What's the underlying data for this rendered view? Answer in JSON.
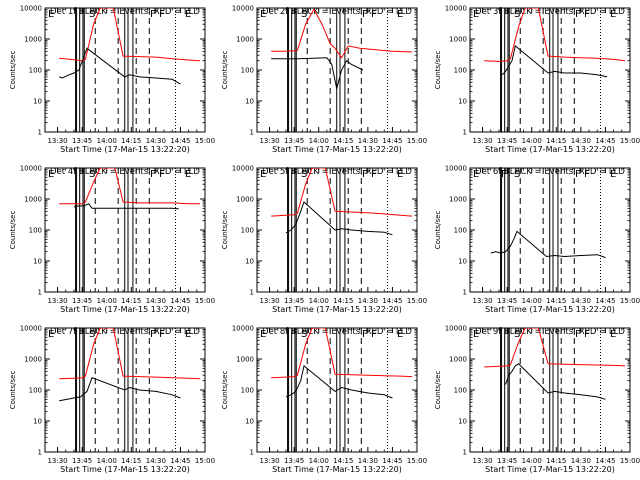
{
  "figure": {
    "start_time_label": "Start Time (17-Mar-15 13:22:20)",
    "ylabel": "Counts/sec",
    "x_tick_labels": [
      "13:30",
      "13:45",
      "14:00",
      "14:15",
      "14:30",
      "14:45",
      "15:00"
    ],
    "y_tick_labels": [
      "1",
      "10",
      "100",
      "1000",
      "10000"
    ]
  },
  "chart_data": [
    {
      "type": "line",
      "title": "Det 1f BLACK = Events, RED = LLD",
      "xlabel": "Start Time (17-Mar-15 13:22:20)",
      "ylabel": "Counts/sec",
      "xlim": [
        "13:22:20",
        "15:00"
      ],
      "ylim": [
        1,
        10000
      ],
      "yscale": "log",
      "marker_letters": [
        "E",
        "S",
        "F",
        "F",
        "E"
      ],
      "series": [
        {
          "color": "#ff0000",
          "x": [
            "13:31",
            "13:38",
            "13:45",
            "13:47",
            "13:52",
            "13:56",
            "14:00",
            "14:04",
            "14:10",
            "14:20",
            "14:30",
            "14:40",
            "14:50",
            "14:57"
          ],
          "y": [
            240,
            220,
            200,
            220,
            3000,
            10000,
            10000,
            10000,
            280,
            270,
            260,
            230,
            210,
            200
          ]
        },
        {
          "color": "#000000",
          "x": [
            "13:31",
            "13:33",
            "13:37",
            "13:40",
            "13:43",
            "13:48",
            "14:11",
            "14:14",
            "14:20",
            "14:30",
            "14:40",
            "14:45"
          ],
          "y": [
            60,
            55,
            70,
            80,
            100,
            500,
            60,
            70,
            60,
            55,
            50,
            35
          ]
        }
      ]
    },
    {
      "type": "line",
      "title": "Det 2f BLACK = Events, RED = LLD",
      "xlabel": "Start Time (17-Mar-15 13:22:20)",
      "ylabel": "Counts/sec",
      "xlim": [
        "13:22:20",
        "15:00"
      ],
      "ylim": [
        1,
        10000
      ],
      "yscale": "log",
      "marker_letters": [
        "E",
        "S",
        "F",
        "F",
        "E"
      ],
      "series": [
        {
          "color": "#ff0000",
          "x": [
            "13:31",
            "13:40",
            "13:45",
            "13:47",
            "13:52",
            "13:57",
            "14:02",
            "14:07",
            "14:10",
            "14:14",
            "14:18",
            "14:25",
            "14:35",
            "14:45",
            "14:57"
          ],
          "y": [
            400,
            400,
            420,
            430,
            3000,
            9000,
            3000,
            700,
            500,
            250,
            600,
            500,
            450,
            400,
            380
          ]
        },
        {
          "color": "#000000",
          "x": [
            "13:31",
            "13:40",
            "13:44",
            "13:48",
            "14:05",
            "14:08",
            "14:11",
            "14:14",
            "14:17",
            "14:20",
            "14:27"
          ],
          "y": [
            230,
            230,
            230,
            230,
            250,
            150,
            25,
            100,
            200,
            150,
            100
          ]
        }
      ]
    },
    {
      "type": "line",
      "title": "Det 3f BLACK = Events, RED = LLD",
      "xlabel": "Start Time (17-Mar-15 13:22:20)",
      "ylabel": "Counts/sec",
      "xlim": [
        "13:22:20",
        "15:00"
      ],
      "ylim": [
        1,
        10000
      ],
      "yscale": "log",
      "marker_letters": [
        "E",
        "S",
        "F",
        "F",
        "E"
      ],
      "series": [
        {
          "color": "#ff0000",
          "x": [
            "13:31",
            "13:40",
            "13:45",
            "13:47",
            "13:52",
            "13:56",
            "14:00",
            "14:04",
            "14:10",
            "14:20",
            "14:30",
            "14:40",
            "14:50",
            "14:57"
          ],
          "y": [
            200,
            190,
            200,
            230,
            2500,
            10000,
            10000,
            10000,
            280,
            260,
            250,
            240,
            220,
            200
          ]
        },
        {
          "color": "#000000",
          "x": [
            "13:42",
            "13:44",
            "13:48",
            "13:50",
            "14:10",
            "14:14",
            "14:20",
            "14:30",
            "14:40",
            "14:46"
          ],
          "y": [
            70,
            90,
            200,
            600,
            80,
            90,
            80,
            80,
            70,
            60
          ]
        }
      ]
    },
    {
      "type": "line",
      "title": "Det 4f BLACK = Events, RED = LLD",
      "xlabel": "Start Time (17-Mar-15 13:22:20)",
      "ylabel": "Counts/sec",
      "xlim": [
        "13:22:20",
        "15:00"
      ],
      "ylim": [
        1,
        10000
      ],
      "yscale": "log",
      "marker_letters": [
        "E",
        "S",
        "F",
        "F",
        "E"
      ],
      "series": [
        {
          "color": "#ff0000",
          "x": [
            "13:31",
            "13:40",
            "13:45",
            "13:47",
            "13:52",
            "13:56",
            "14:00",
            "14:05",
            "14:10",
            "14:20",
            "14:30",
            "14:40",
            "14:50",
            "14:57"
          ],
          "y": [
            700,
            700,
            700,
            800,
            3500,
            10000,
            10000,
            10000,
            800,
            750,
            750,
            750,
            700,
            700
          ]
        },
        {
          "color": "#000000",
          "x": [
            "13:40",
            "13:43",
            "13:46",
            "13:49",
            "13:51",
            "14:05",
            "14:10",
            "14:20",
            "14:30",
            "14:40",
            "14:44"
          ],
          "y": [
            550,
            600,
            600,
            700,
            500,
            500,
            500,
            500,
            500,
            500,
            480
          ]
        }
      ]
    },
    {
      "type": "line",
      "title": "Det 5f BLACK = Events, RED = LLD",
      "xlabel": "Start Time (17-Mar-15 13:22:20)",
      "ylabel": "Counts/sec",
      "xlim": [
        "13:22:20",
        "15:00"
      ],
      "ylim": [
        1,
        10000
      ],
      "yscale": "log",
      "marker_letters": [
        "E",
        "S",
        "F",
        "F",
        "E"
      ],
      "series": [
        {
          "color": "#ff0000",
          "x": [
            "13:31",
            "13:40",
            "13:45",
            "13:47",
            "13:52",
            "13:56",
            "14:00",
            "14:04",
            "14:10",
            "14:20",
            "14:30",
            "14:40",
            "14:50",
            "14:57"
          ],
          "y": [
            280,
            300,
            310,
            350,
            3000,
            10000,
            10000,
            10000,
            400,
            380,
            360,
            330,
            300,
            280
          ]
        },
        {
          "color": "#000000",
          "x": [
            "13:40",
            "13:43",
            "13:46",
            "13:49",
            "13:51",
            "14:10",
            "14:14",
            "14:20",
            "14:30",
            "14:40",
            "14:45"
          ],
          "y": [
            80,
            100,
            150,
            400,
            800,
            100,
            110,
            100,
            90,
            85,
            70
          ]
        }
      ]
    },
    {
      "type": "line",
      "title": "Det 6f BLACK = Events, RED = LLD",
      "xlabel": "Start Time (17-Mar-15 13:22:20)",
      "ylabel": "Counts/sec",
      "xlim": [
        "13:22:20",
        "15:00"
      ],
      "ylim": [
        1,
        10000
      ],
      "yscale": "log",
      "marker_letters": [
        "E",
        "F",
        "S",
        "F",
        "F",
        "E"
      ],
      "series": [
        {
          "color": "#000000",
          "x": [
            "13:35",
            "13:38",
            "13:41",
            "13:44",
            "13:47",
            "13:49",
            "13:51",
            "14:09",
            "14:14",
            "14:20",
            "14:30",
            "14:40",
            "14:45"
          ],
          "y": [
            18,
            20,
            18,
            20,
            30,
            50,
            90,
            14,
            15,
            14,
            15,
            16,
            13
          ]
        }
      ]
    },
    {
      "type": "line",
      "title": "Det 7f BLACK = Events, RED = LLD",
      "xlabel": "Start Time (17-Mar-15 13:22:20)",
      "ylabel": "Counts/sec",
      "xlim": [
        "13:22:20",
        "15:00"
      ],
      "ylim": [
        1,
        10000
      ],
      "yscale": "log",
      "marker_letters": [
        "E",
        "S",
        "F",
        "F",
        "E"
      ],
      "series": [
        {
          "color": "#ff0000",
          "x": [
            "13:31",
            "13:40",
            "13:45",
            "13:47",
            "13:52",
            "13:56",
            "14:00",
            "14:04",
            "14:10",
            "14:20",
            "14:30",
            "14:40",
            "14:50",
            "14:57"
          ],
          "y": [
            230,
            240,
            250,
            280,
            3000,
            10000,
            10000,
            10000,
            280,
            270,
            260,
            250,
            240,
            230
          ]
        },
        {
          "color": "#000000",
          "x": [
            "13:31",
            "13:36",
            "13:40",
            "13:44",
            "13:48",
            "13:51",
            "14:11",
            "14:14",
            "14:20",
            "14:30",
            "14:40",
            "14:45"
          ],
          "y": [
            45,
            50,
            55,
            60,
            90,
            250,
            100,
            120,
            100,
            90,
            70,
            55
          ]
        }
      ]
    },
    {
      "type": "line",
      "title": "Det 8f BLACK = Events, RED = LLD",
      "xlabel": "Start Time (17-Mar-15 13:22:20)",
      "ylabel": "Counts/sec",
      "xlim": [
        "13:22:20",
        "15:00"
      ],
      "ylim": [
        1,
        10000
      ],
      "yscale": "log",
      "marker_letters": [
        "E",
        "S",
        "F",
        "F",
        "E"
      ],
      "series": [
        {
          "color": "#ff0000",
          "x": [
            "13:31",
            "13:40",
            "13:45",
            "13:47",
            "13:52",
            "13:56",
            "14:00",
            "14:04",
            "14:10",
            "14:20",
            "14:30",
            "14:40",
            "14:50",
            "14:57"
          ],
          "y": [
            250,
            260,
            270,
            300,
            3000,
            10000,
            10000,
            10000,
            320,
            310,
            300,
            290,
            280,
            270
          ]
        },
        {
          "color": "#000000",
          "x": [
            "13:40",
            "13:43",
            "13:46",
            "13:49",
            "13:51",
            "14:10",
            "14:14",
            "14:20",
            "14:30",
            "14:40",
            "14:45"
          ],
          "y": [
            60,
            70,
            90,
            200,
            600,
            90,
            120,
            100,
            80,
            70,
            55
          ]
        }
      ]
    },
    {
      "type": "line",
      "title": "Det 9f BLACK = Events, RED = LLD",
      "xlabel": "Start Time (17-Mar-15 13:22:20)",
      "ylabel": "Counts/sec",
      "xlim": [
        "13:22:20",
        "15:00"
      ],
      "ylim": [
        1,
        10000
      ],
      "yscale": "log",
      "marker_letters": [
        "E",
        "S",
        "F",
        "F",
        "E"
      ],
      "series": [
        {
          "color": "#ff0000",
          "x": [
            "13:31",
            "13:40",
            "13:45",
            "13:47",
            "13:52",
            "13:56",
            "14:00",
            "14:04",
            "14:10",
            "14:20",
            "14:30",
            "14:40",
            "14:50",
            "14:57"
          ],
          "y": [
            550,
            580,
            600,
            650,
            3500,
            10000,
            10000,
            10000,
            700,
            680,
            660,
            640,
            620,
            600
          ]
        },
        {
          "color": "#000000",
          "x": [
            "13:44",
            "13:46",
            "13:48",
            "13:50",
            "13:52",
            "14:10",
            "14:14",
            "14:20",
            "14:30",
            "14:40",
            "14:45"
          ],
          "y": [
            150,
            300,
            400,
            600,
            700,
            80,
            90,
            80,
            70,
            60,
            50
          ]
        }
      ]
    }
  ]
}
